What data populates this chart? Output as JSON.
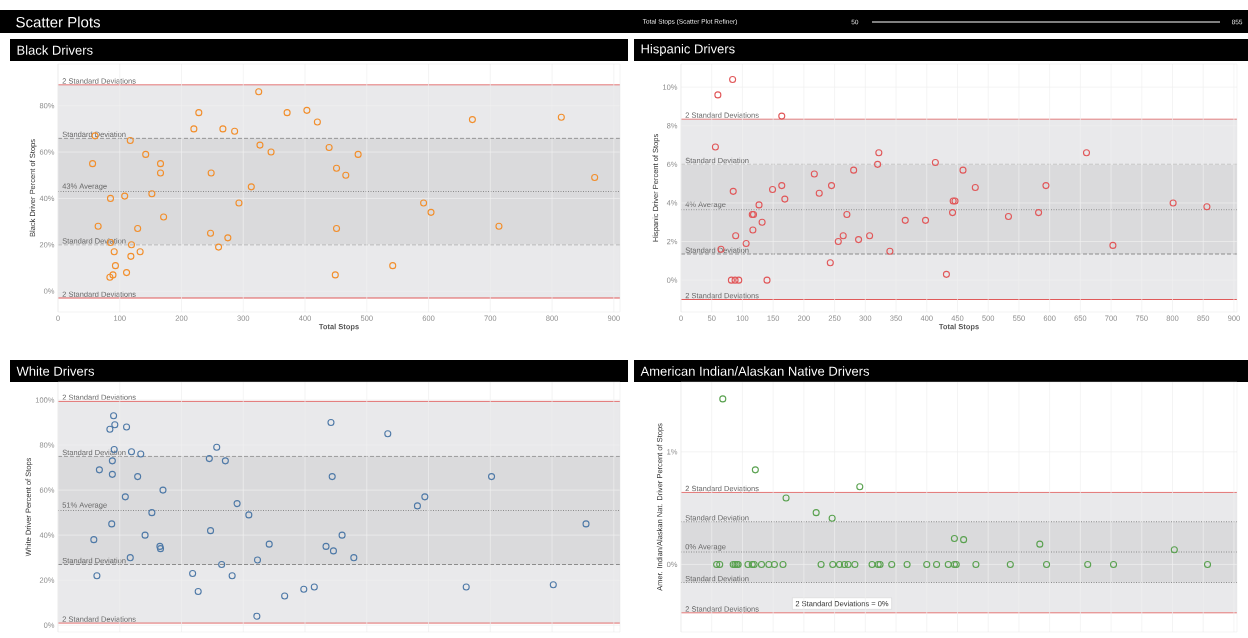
{
  "chart_data": [
    {
      "type": "other",
      "title": "Scatter Plots",
      "annotations": [
        "Total Stops (Scatter Plot Refiner)",
        "50",
        "855"
      ]
    },
    {
      "type": "scatter",
      "title": "Black Drivers",
      "xlabel": "Total Stops",
      "ylabel": "Black Driver Percent of Stops",
      "color": "#f28e2b",
      "marker": "circle",
      "grid": true,
      "xlim": [
        0,
        910
      ],
      "ylim": [
        -9,
        98
      ],
      "xticks": [
        0,
        100,
        200,
        300,
        400,
        500,
        600,
        700,
        800,
        900
      ],
      "yticks": [
        {
          "value": 0,
          "label": "0%"
        },
        {
          "value": 20,
          "label": "20%"
        },
        {
          "value": 40,
          "label": "40%"
        },
        {
          "value": 60,
          "label": "60%"
        },
        {
          "value": 80,
          "label": "80%"
        }
      ],
      "x": [
        325,
        228,
        371,
        403,
        420,
        671,
        815,
        220,
        267,
        286,
        60,
        117,
        327,
        345,
        439,
        486,
        142,
        56,
        166,
        166,
        248,
        451,
        466,
        869,
        313,
        152,
        85,
        108,
        293,
        592,
        604,
        171,
        65,
        129,
        451,
        714,
        247,
        275,
        260,
        85,
        119,
        91,
        133,
        118,
        93,
        542,
        111,
        89,
        84,
        449
      ],
      "values": [
        86,
        77,
        77,
        78,
        73,
        74,
        75,
        70,
        70,
        69,
        67,
        65,
        63,
        60,
        62,
        59,
        59,
        55,
        55,
        51,
        51,
        53,
        50,
        49,
        45,
        42,
        40,
        41,
        38,
        38,
        34,
        32,
        28,
        27,
        27,
        28,
        25,
        23,
        19,
        21,
        20,
        17,
        17,
        15,
        11,
        11,
        8,
        7,
        6,
        7
      ],
      "bands": [
        {
          "axis": "y",
          "from": -3,
          "to": 89,
          "color": "#e9e9eb"
        },
        {
          "axis": "y",
          "from": 20,
          "to": 66,
          "color": "#dadadc"
        }
      ],
      "ref_lines": [
        {
          "axis": "y",
          "value": 89,
          "label": "2 Standard Deviations",
          "color": "#e05a5a",
          "line_style": "solid"
        },
        {
          "axis": "y",
          "value": 66,
          "label": "Standard Deviation",
          "color": "#8c8c8c",
          "line_style": "dashed"
        },
        {
          "axis": "y",
          "value": 43,
          "label": "43% Average",
          "color": "#8c8c8c",
          "line_style": "dotted"
        },
        {
          "axis": "y",
          "value": 20,
          "label": "Standard Deviation",
          "color": "#8c8c8c",
          "line_style": "dashed"
        },
        {
          "axis": "y",
          "value": -3,
          "label": "2 Standard Deviations",
          "color": "#e05a5a",
          "line_style": "solid"
        }
      ]
    },
    {
      "type": "scatter",
      "title": "Hispanic Drivers",
      "xlabel": "Total Stops",
      "ylabel": "Hispanic Driver Percent of Stops",
      "color": "#e15759",
      "marker": "circle",
      "grid": true,
      "xlim": [
        0,
        905
      ],
      "ylim": [
        -1.65,
        11.2
      ],
      "xticks": [
        0,
        50,
        100,
        150,
        200,
        250,
        300,
        350,
        400,
        450,
        500,
        550,
        600,
        650,
        700,
        750,
        800,
        850,
        900
      ],
      "yticks": [
        {
          "value": 0,
          "label": "0%"
        },
        {
          "value": 2,
          "label": "2%"
        },
        {
          "value": 4,
          "label": "4%"
        },
        {
          "value": 6,
          "label": "6%"
        },
        {
          "value": 8,
          "label": "8%"
        },
        {
          "value": 10,
          "label": "10%"
        }
      ],
      "x": [
        84,
        60,
        164,
        56,
        322,
        660,
        320,
        414,
        281,
        459,
        217,
        85,
        149,
        164,
        245,
        479,
        594,
        169,
        225,
        127,
        116,
        118,
        443,
        446,
        270,
        442,
        582,
        801,
        856,
        132,
        365,
        398,
        533,
        117,
        89,
        264,
        307,
        289,
        256,
        106,
        703,
        340,
        65,
        243,
        432,
        82,
        88,
        94,
        140
      ],
      "values": [
        10.4,
        9.6,
        8.5,
        6.9,
        6.6,
        6.6,
        6.0,
        6.1,
        5.7,
        5.7,
        5.5,
        4.6,
        4.7,
        4.9,
        4.9,
        4.8,
        4.9,
        4.2,
        4.5,
        3.9,
        3.4,
        3.4,
        4.1,
        4.1,
        3.4,
        3.5,
        3.5,
        4.0,
        3.8,
        3.0,
        3.1,
        3.1,
        3.3,
        2.6,
        2.3,
        2.3,
        2.3,
        2.1,
        2.0,
        1.9,
        1.8,
        1.5,
        1.6,
        0.9,
        0.3,
        0,
        0,
        0,
        0
      ],
      "bands": [
        {
          "axis": "y",
          "from": -1.0,
          "to": 8.35,
          "color": "#e9e9eb"
        },
        {
          "axis": "y",
          "from": 1.35,
          "to": 6.0,
          "color": "#dadadc"
        }
      ],
      "ref_lines": [
        {
          "axis": "y",
          "value": 8.35,
          "label": "2 Standard Deviations",
          "color": "#e05a5a",
          "line_style": "solid"
        },
        {
          "axis": "y",
          "value": 6.0,
          "label": "Standard Deviation",
          "color": "#8c8c8c",
          "line_style": "dashed"
        },
        {
          "axis": "y",
          "value": 3.65,
          "label": "4% Average",
          "color": "#8c8c8c",
          "line_style": "dotted"
        },
        {
          "axis": "y",
          "value": 1.35,
          "label": "Standard Deviation",
          "color": "#8c8c8c",
          "line_style": "dashed"
        },
        {
          "axis": "y",
          "value": -1.0,
          "label": "2 Standard Deviations",
          "color": "#e05a5a",
          "line_style": "solid"
        }
      ]
    },
    {
      "type": "scatter",
      "title": "White Drivers",
      "ylabel": "White Driver Percent of Stops",
      "color": "#4e79a7",
      "marker": "circle",
      "grid": true,
      "tick_labels": "y",
      "xlim": [
        0,
        910
      ],
      "ylim": [
        -3,
        108
      ],
      "xticks": [
        0,
        100,
        200,
        300,
        400,
        500,
        600,
        700,
        800,
        900
      ],
      "yticks": [
        {
          "value": 0,
          "label": "0%"
        },
        {
          "value": 20,
          "label": "20%"
        },
        {
          "value": 40,
          "label": "40%"
        },
        {
          "value": 60,
          "label": "60%"
        },
        {
          "value": 80,
          "label": "80%"
        },
        {
          "value": 100,
          "label": "100%"
        }
      ],
      "x": [
        90,
        84,
        92,
        111,
        442,
        534,
        257,
        91,
        119,
        134,
        245,
        271,
        88,
        67,
        88,
        129,
        444,
        702,
        170,
        109,
        594,
        582,
        290,
        152,
        309,
        87,
        855,
        247,
        460,
        141,
        58,
        165,
        166,
        342,
        434,
        446,
        117,
        323,
        479,
        265,
        218,
        63,
        282,
        227,
        415,
        398,
        661,
        802,
        367,
        322
      ],
      "values": [
        93,
        87,
        89,
        88,
        90,
        85,
        79,
        78,
        77,
        76,
        74,
        73,
        73,
        69,
        67,
        66,
        66,
        66,
        60,
        57,
        57,
        53,
        54,
        50,
        49,
        45,
        45,
        42,
        40,
        40,
        38,
        35,
        34,
        36,
        35,
        33,
        30,
        29,
        30,
        27,
        23,
        22,
        22,
        15,
        17,
        16,
        17,
        18,
        13,
        4
      ],
      "bands": [
        {
          "axis": "y",
          "from": 1,
          "to": 99.5,
          "color": "#e9e9eb"
        },
        {
          "axis": "y",
          "from": 27,
          "to": 75,
          "color": "#dadadc"
        }
      ],
      "ref_lines": [
        {
          "axis": "y",
          "value": 99.5,
          "label": "2 Standard Deviations",
          "color": "#e05a5a",
          "line_style": "solid"
        },
        {
          "axis": "y",
          "value": 75,
          "label": "Standard Deviation",
          "color": "#8c8c8c",
          "line_style": "dashed"
        },
        {
          "axis": "y",
          "value": 51,
          "label": "51% Average",
          "color": "#8c8c8c",
          "line_style": "dotted"
        },
        {
          "axis": "y",
          "value": 27,
          "label": "Standard Deviation",
          "color": "#8c8c8c",
          "line_style": "dashed"
        },
        {
          "axis": "y",
          "value": 1,
          "label": "2 Standard Deviations",
          "color": "#e05a5a",
          "line_style": "solid"
        }
      ]
    },
    {
      "type": "scatter",
      "title": "American Indian/Alaskan Native Drivers",
      "ylabel": "Amer. Indian/Alaskan Nat. Driver Percent of Stops",
      "color": "#59a14f",
      "marker": "circle",
      "grid": true,
      "tick_labels": "y",
      "xlim": [
        0,
        905
      ],
      "ylim": [
        -0.6,
        1.62
      ],
      "xticks": [
        0,
        50,
        100,
        150,
        200,
        250,
        300,
        350,
        400,
        450,
        500,
        550,
        600,
        650,
        700,
        750,
        800,
        850,
        900
      ],
      "yticks": [
        {
          "value": 0,
          "label": "0%"
        },
        {
          "value": 1,
          "label": "1%"
        }
      ],
      "x": [
        68,
        121,
        291,
        171,
        220,
        246,
        445,
        460,
        584,
        803,
        58,
        63,
        85,
        88,
        91,
        93,
        109,
        116,
        119,
        131,
        143,
        152,
        166,
        228,
        247,
        258,
        266,
        272,
        283,
        311,
        321,
        324,
        343,
        368,
        400,
        416,
        435,
        445,
        448,
        480,
        536,
        595,
        662,
        704,
        857
      ],
      "values": [
        1.47,
        0.84,
        0.69,
        0.59,
        0.46,
        0.41,
        0.23,
        0.22,
        0.18,
        0.13,
        0,
        0,
        0,
        0,
        0,
        0,
        0,
        0,
        0,
        0,
        0,
        0,
        0,
        0,
        0,
        0,
        0,
        0,
        0,
        0,
        0,
        0,
        0,
        0,
        0,
        0,
        0,
        0,
        0,
        0,
        0,
        0,
        0,
        0,
        0
      ],
      "bands": [
        {
          "axis": "y",
          "from": -0.43,
          "to": 0.64,
          "color": "#e9e9eb"
        },
        {
          "axis": "y",
          "from": -0.16,
          "to": 0.38,
          "color": "#dadadc"
        }
      ],
      "ref_lines": [
        {
          "axis": "y",
          "value": 0.64,
          "label": "2 Standard Deviations",
          "color": "#e05a5a",
          "line_style": "solid"
        },
        {
          "axis": "y",
          "value": 0.38,
          "label": "Standard Deviation",
          "color": "#8c8c8c",
          "line_style": "dotted"
        },
        {
          "axis": "y",
          "value": 0.11,
          "label": "0% Average",
          "color": "#8c8c8c",
          "line_style": "dotted"
        },
        {
          "axis": "y",
          "value": -0.16,
          "label": "Standard Deviation",
          "color": "#8c8c8c",
          "line_style": "dotted"
        },
        {
          "axis": "y",
          "value": -0.43,
          "label": "2 Standard Deviations",
          "color": "#e05a5a",
          "line_style": "solid"
        }
      ],
      "annotations": [
        "2 Standard Deviations = 0%"
      ]
    }
  ]
}
